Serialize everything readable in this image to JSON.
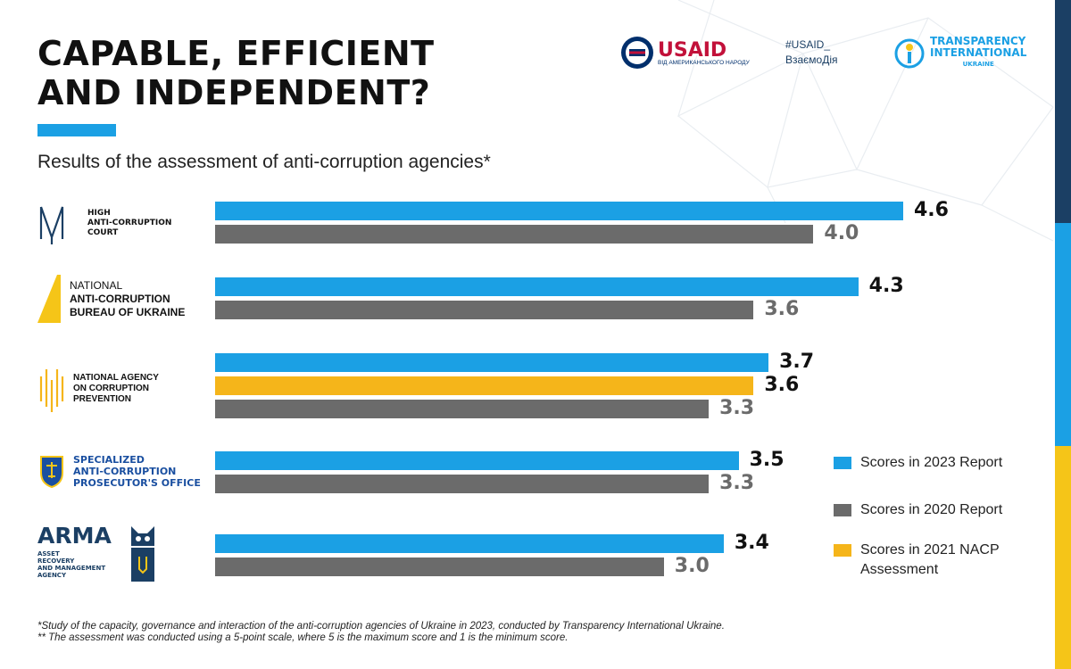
{
  "header": {
    "title_line1": "CAPABLE, EFFICIENT",
    "title_line2": "AND INDEPENDENT?",
    "subtitle": "Results of the assessment of anti-corruption agencies*"
  },
  "partners": {
    "usaid": {
      "word": "USAID",
      "sub": "ВІД АМЕРИКАНСЬКОГО НАРОДУ"
    },
    "hashtag_line1": "#USAID_",
    "hashtag_line2": "ВзаємоДія",
    "ti": {
      "line1": "TRANSPARENCY",
      "line2": "INTERNATIONAL",
      "line3": "UKRAINE"
    }
  },
  "agencies": [
    {
      "lines": [
        "HIGH",
        "ANTI-CORRUPTION",
        "COURT"
      ]
    },
    {
      "lines": [
        "NATIONAL",
        "ANTI-CORRUPTION",
        "BUREAU OF UKRAINE"
      ]
    },
    {
      "lines": [
        "NATIONAL AGENCY",
        "ON CORRUPTION",
        "PREVENTION"
      ]
    },
    {
      "lines": [
        "SPECIALIZED",
        "ANTI-CORRUPTION",
        "PROSECUTOR'S OFFICE"
      ]
    },
    {
      "logo": "ARMA",
      "lines": [
        "ASSET",
        "RECOVERY",
        "AND MANAGEMENT",
        "AGENCY"
      ]
    }
  ],
  "chart_data": {
    "type": "bar",
    "orientation": "horizontal",
    "title": "Results of the assessment of anti-corruption agencies*",
    "categories": [
      "High Anti-Corruption Court",
      "National Anti-Corruption Bureau of Ukraine",
      "National Agency on Corruption Prevention",
      "Specialized Anti-Corruption Prosecutor's Office",
      "ARMA Asset Recovery and Management Agency"
    ],
    "series": [
      {
        "name": "Scores in 2023 Report",
        "color": "#1ba0e4",
        "values": [
          4.6,
          4.3,
          3.7,
          3.5,
          3.4
        ],
        "labels": [
          "4.6",
          "4.3",
          "3.7",
          "3.5",
          "3.4"
        ]
      },
      {
        "name": "Scores in 2021 NACP Assessment",
        "color": "#f5b51a",
        "values": [
          null,
          null,
          3.6,
          null,
          null
        ],
        "labels": [
          null,
          null,
          "3.6",
          null,
          null
        ]
      },
      {
        "name": "Scores in 2020 Report",
        "color": "#6b6b6b",
        "values": [
          4.0,
          3.6,
          3.3,
          3.3,
          3.0
        ],
        "labels": [
          "4.0",
          "3.6",
          "3.3",
          "3.3",
          "3.0"
        ]
      }
    ],
    "xlim": [
      0,
      5
    ],
    "grid": false,
    "legend_position": "right"
  },
  "legend": [
    {
      "label": "Scores in 2023 Report",
      "color": "#1ba0e4"
    },
    {
      "label": "Scores in 2020 Report",
      "color": "#6b6b6b"
    },
    {
      "label": "Scores in 2021 NACP Assessment",
      "color": "#f5b51a"
    }
  ],
  "footnotes": {
    "line1": "*Study of the capacity, governance and interaction of the anti-corruption agencies of Ukraine in 2023, conducted by Transparency International Ukraine.",
    "line2": "** The assessment was conducted using a 5-point scale, where 5 is the maximum score and 1 is the minimum score."
  }
}
